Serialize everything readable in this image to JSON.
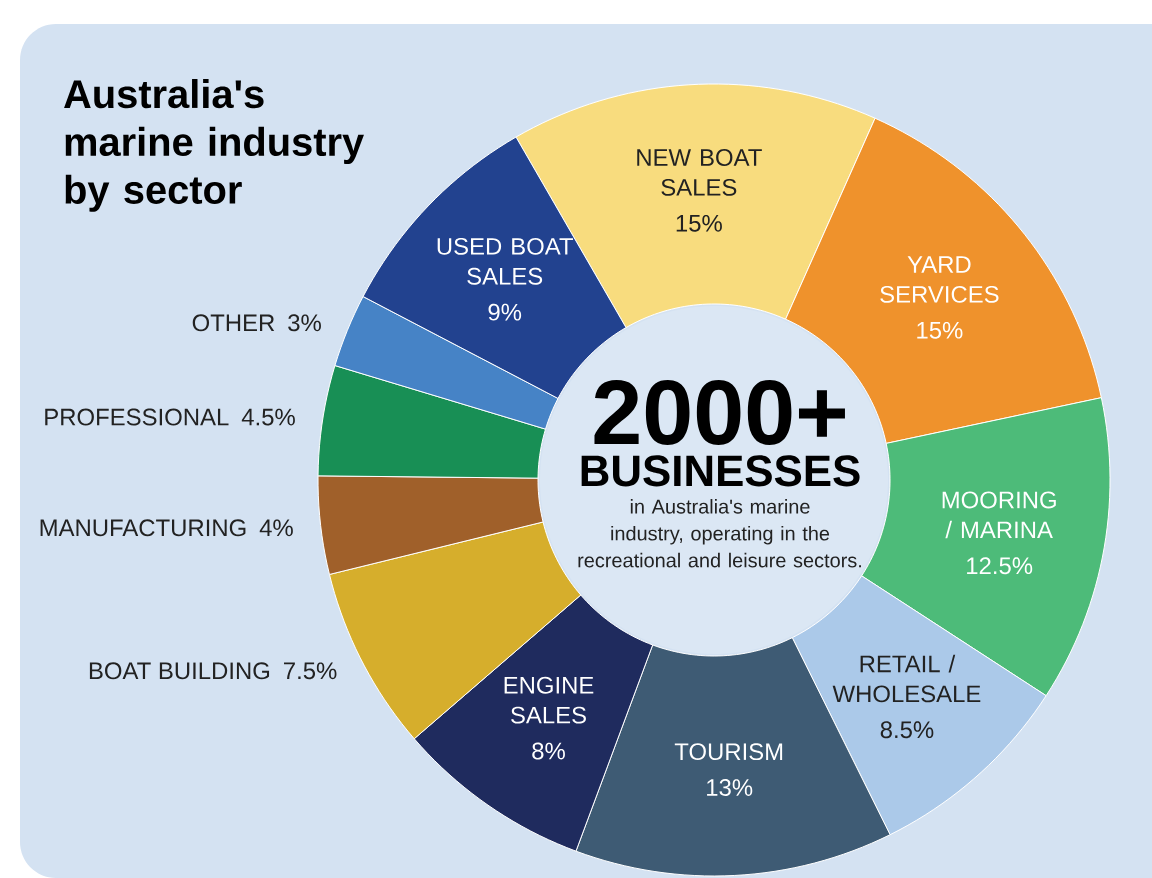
{
  "chart_data": {
    "type": "donut",
    "title": "Australia's marine industry by sector",
    "categories": [
      "NEW BOAT SALES",
      "YARD SERVICES",
      "MOORING / MARINA",
      "RETAIL / WHOLESALE",
      "TOURISM",
      "ENGINE SALES",
      "BOAT BUILDING",
      "MANUFACTURING",
      "PROFESSIONAL",
      "OTHER",
      "USED BOAT SALES"
    ],
    "values": [
      15,
      15,
      12.5,
      8.5,
      13,
      8,
      7.5,
      4,
      4.5,
      3,
      9
    ],
    "value_labels": [
      "15%",
      "15%",
      "12.5%",
      "8.5%",
      "13%",
      "8%",
      "7.5%",
      "4%",
      "4.5%",
      "3%",
      "9%"
    ],
    "colors": [
      "#f8dc7e",
      "#ef922c",
      "#4dbb79",
      "#abc9e9",
      "#3e5b74",
      "#1f2b5e",
      "#d6ae2c",
      "#a0602a",
      "#188f55",
      "#4683c6",
      "#22428f"
    ],
    "annotations": [
      "2000+",
      "BUSINESSES",
      "in Australia's marine industry, operating in the recreational and leisure sectors."
    ]
  }
}
